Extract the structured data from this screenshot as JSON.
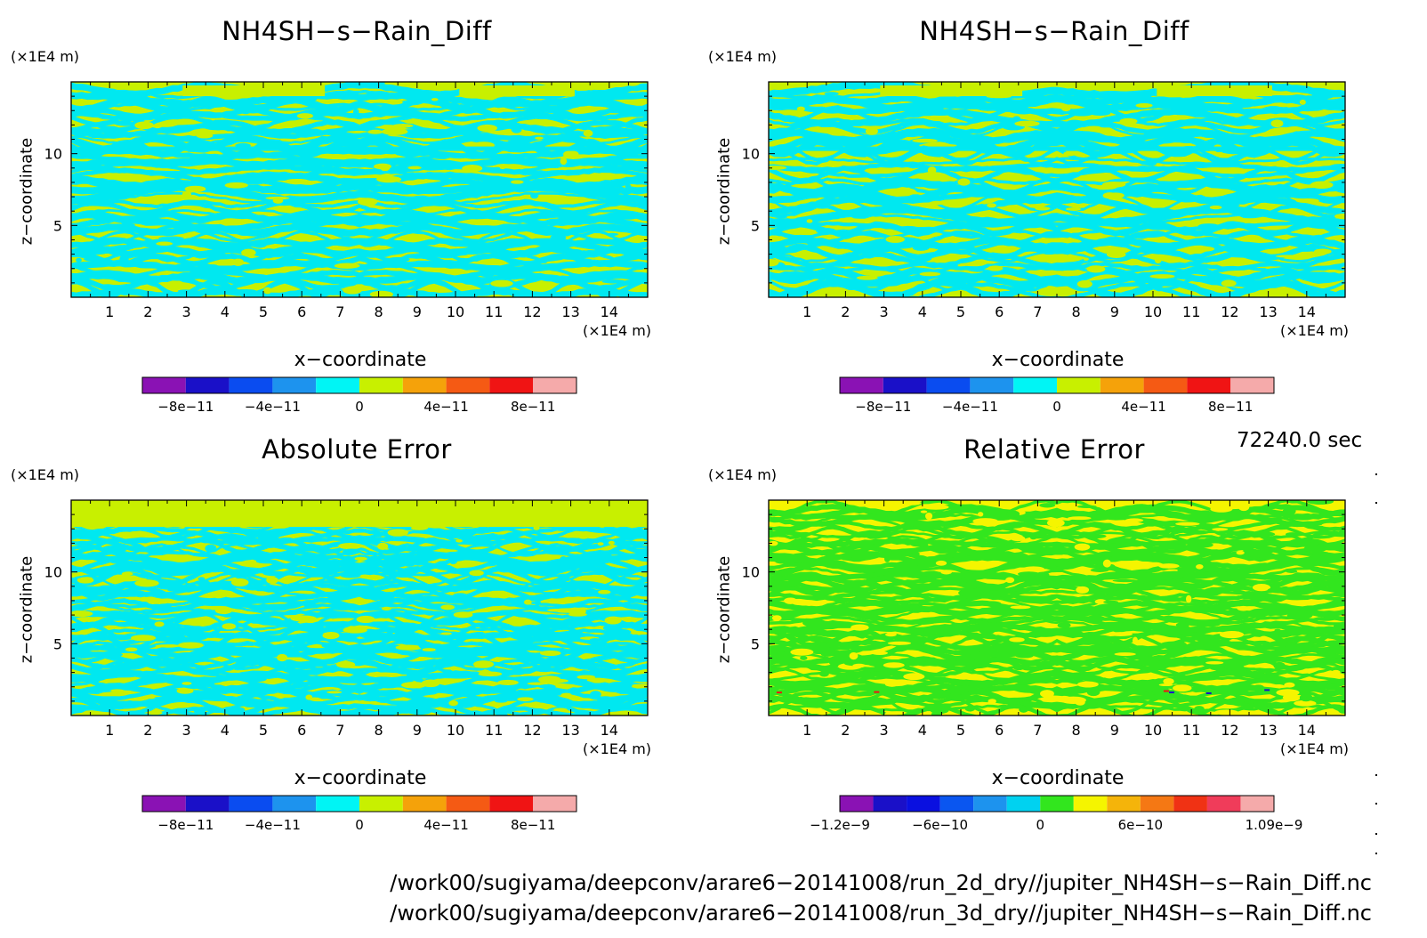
{
  "panels": [
    {
      "title": "NH4SH−s−Rain_Diff",
      "y_unit": "(×1E4 m)",
      "x_unit": "(×1E4 m)",
      "xlabel": "x−coordinate",
      "ylabel": "z−coordinate",
      "palette": [
        "#8a12b4",
        "#1a10c8",
        "#0a4cf0",
        "#1d93ee",
        "#00f5f5",
        "#c8f000",
        "#f5a20a",
        "#f55a14",
        "#f01414",
        "#f5aaaa"
      ],
      "colorbar_ticks": [
        "−8e−11",
        "−4e−11",
        "0",
        "4e−11",
        "8e−11"
      ],
      "field": {
        "main": "#c8f000",
        "alt": "#00e8f0",
        "extra": []
      }
    },
    {
      "title": "NH4SH−s−Rain_Diff",
      "y_unit": "(×1E4 m)",
      "x_unit": "(×1E4 m)",
      "xlabel": "x−coordinate",
      "ylabel": "z−coordinate",
      "palette": [
        "#8a12b4",
        "#1a10c8",
        "#0a4cf0",
        "#1d93ee",
        "#00f5f5",
        "#c8f000",
        "#f5a20a",
        "#f55a14",
        "#f01414",
        "#f5aaaa"
      ],
      "colorbar_ticks": [
        "−8e−11",
        "−4e−11",
        "0",
        "4e−11",
        "8e−11"
      ],
      "field": {
        "main": "#c8f000",
        "alt": "#00e8f0",
        "extra": []
      }
    },
    {
      "title": "Absolute Error",
      "y_unit": "(×1E4 m)",
      "x_unit": "(×1E4 m)",
      "xlabel": "x−coordinate",
      "ylabel": "z−coordinate",
      "palette": [
        "#8a12b4",
        "#1a10c8",
        "#0a4cf0",
        "#1d93ee",
        "#00f5f5",
        "#c8f000",
        "#f5a20a",
        "#f55a14",
        "#f01414",
        "#f5aaaa"
      ],
      "colorbar_ticks": [
        "−8e−11",
        "−4e−11",
        "0",
        "4e−11",
        "8e−11"
      ],
      "field": {
        "main": "#c8f000",
        "alt": "#00e8f0",
        "extra": []
      }
    },
    {
      "title": "Relative Error",
      "y_unit": "(×1E4 m)",
      "x_unit": "(×1E4 m)",
      "xlabel": "x−coordinate",
      "ylabel": "z−coordinate",
      "palette": [
        "#8a12b4",
        "#1a10c8",
        "#0a10e0",
        "#0a56f0",
        "#1d93ee",
        "#00d2f0",
        "#32e61e",
        "#f5f500",
        "#f5b40a",
        "#f57814",
        "#f03214",
        "#f03c5a",
        "#f5aaaa"
      ],
      "colorbar_ticks": [
        "−1.2e−9",
        "−6e−10",
        "0",
        "6e−10",
        "1.09e−9"
      ],
      "field": {
        "main": "#f5f500",
        "alt": "#32e61e",
        "extra": [
          "#f01414",
          "#1a10c8"
        ]
      }
    }
  ],
  "chart_data": [
    {
      "type": "heatmap",
      "title": "NH4SH−s−Rain_Diff",
      "xlabel": "x−coordinate",
      "ylabel": "z−coordinate",
      "x_ticks": [
        1,
        2,
        3,
        4,
        5,
        6,
        7,
        8,
        9,
        10,
        11,
        12,
        13,
        14
      ],
      "y_ticks": [
        5,
        10
      ],
      "xlim": [
        0,
        15
      ],
      "ylim": [
        0,
        15
      ],
      "colorbar_levels": [
        -1e-10,
        -8e-11,
        -6e-11,
        -4e-11,
        -2e-11,
        0,
        2e-11,
        4e-11,
        6e-11,
        8e-11,
        1e-10
      ]
    },
    {
      "type": "heatmap",
      "title": "NH4SH−s−Rain_Diff",
      "xlabel": "x−coordinate",
      "ylabel": "z−coordinate",
      "x_ticks": [
        1,
        2,
        3,
        4,
        5,
        6,
        7,
        8,
        9,
        10,
        11,
        12,
        13,
        14
      ],
      "y_ticks": [
        5,
        10
      ],
      "xlim": [
        0,
        15
      ],
      "ylim": [
        0,
        15
      ],
      "colorbar_levels": [
        -1e-10,
        -8e-11,
        -6e-11,
        -4e-11,
        -2e-11,
        0,
        2e-11,
        4e-11,
        6e-11,
        8e-11,
        1e-10
      ]
    },
    {
      "type": "heatmap",
      "title": "Absolute Error",
      "xlabel": "x−coordinate",
      "ylabel": "z−coordinate",
      "x_ticks": [
        1,
        2,
        3,
        4,
        5,
        6,
        7,
        8,
        9,
        10,
        11,
        12,
        13,
        14
      ],
      "y_ticks": [
        5,
        10
      ],
      "xlim": [
        0,
        15
      ],
      "ylim": [
        0,
        15
      ],
      "colorbar_levels": [
        -1e-10,
        -8e-11,
        -6e-11,
        -4e-11,
        -2e-11,
        0,
        2e-11,
        4e-11,
        6e-11,
        8e-11,
        1e-10
      ]
    },
    {
      "type": "heatmap",
      "title": "Relative Error",
      "xlabel": "x−coordinate",
      "ylabel": "z−coordinate",
      "x_ticks": [
        1,
        2,
        3,
        4,
        5,
        6,
        7,
        8,
        9,
        10,
        11,
        12,
        13,
        14
      ],
      "y_ticks": [
        5,
        10
      ],
      "xlim": [
        0,
        15
      ],
      "ylim": [
        0,
        15
      ],
      "colorbar_levels": [
        -1.2e-09,
        -1e-09,
        -8e-10,
        -6e-10,
        -4e-10,
        -2e-10,
        0,
        2e-10,
        4e-10,
        6e-10,
        8e-10,
        1e-09,
        1.09e-09
      ]
    }
  ],
  "footer": {
    "time": "72240.0 sec",
    "file_2d": "/work00/sugiyama/deepconv/arare6−20141008/run_2d_dry//jupiter_NH4SH−s−Rain_Diff.nc",
    "file_3d": "/work00/sugiyama/deepconv/arare6−20141008/run_3d_dry//jupiter_NH4SH−s−Rain_Diff.nc"
  }
}
